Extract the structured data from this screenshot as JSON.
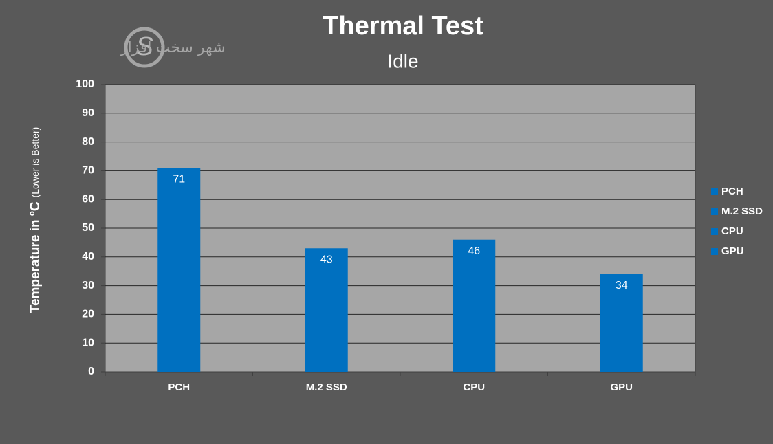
{
  "chart_data": {
    "type": "bar",
    "title": "Thermal Test",
    "subtitle": "Idle",
    "y_label": "Temperature in ºC",
    "y_label_note": "(Lower is Better)",
    "logo_text": "شهر سخت افزار",
    "categories": [
      "PCH",
      "M.2 SSD",
      "CPU",
      "GPU"
    ],
    "values": [
      71,
      43,
      46,
      34
    ],
    "color": "#0070c0",
    "ylim": [
      0,
      100
    ],
    "yticks": [
      0,
      10,
      20,
      30,
      40,
      50,
      60,
      70,
      80,
      90,
      100
    ],
    "grid": true,
    "legend": "right"
  }
}
